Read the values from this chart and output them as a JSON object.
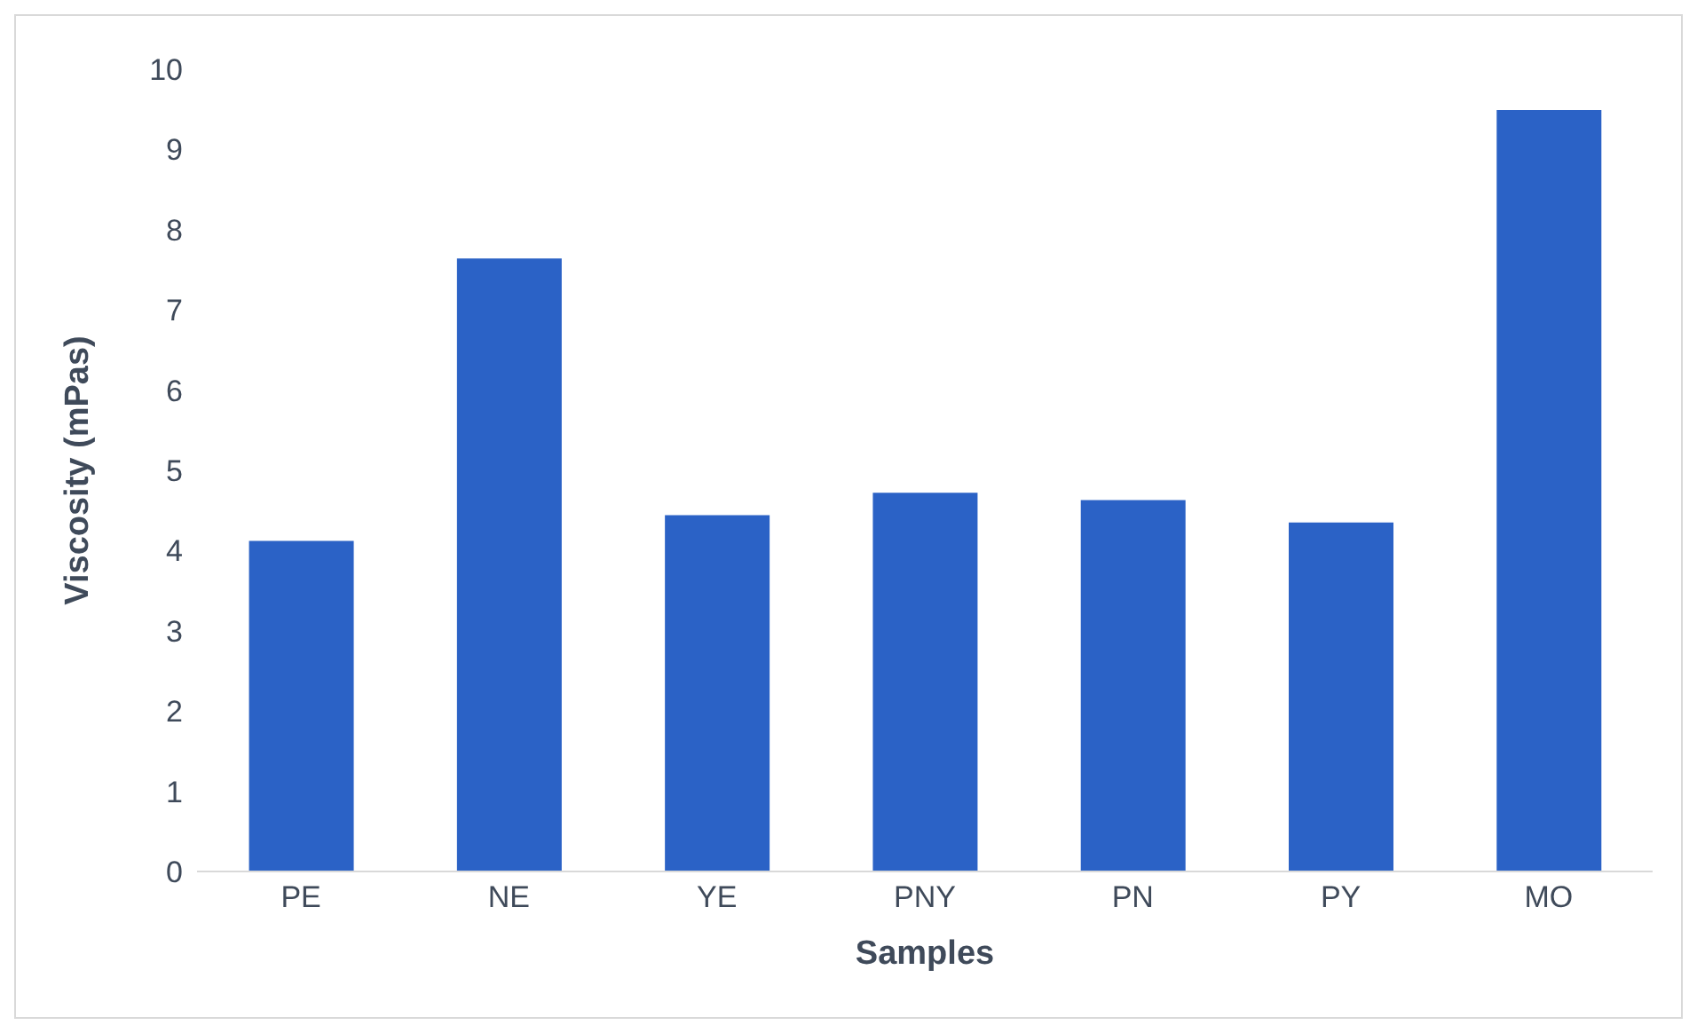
{
  "chart_data": {
    "type": "bar",
    "xlabel": "Samples",
    "ylabel": "Viscosity (mPas)",
    "categories": [
      "PE",
      "NE",
      "YE",
      "PNY",
      "PN",
      "PY",
      "MO"
    ],
    "values": [
      4.12,
      7.64,
      4.44,
      4.72,
      4.63,
      4.35,
      9.49
    ],
    "color": "#2b62c6",
    "ylim": [
      0,
      10
    ],
    "yticks": [
      0,
      1,
      2,
      3,
      4,
      5,
      6,
      7,
      8,
      9,
      10
    ],
    "grid": false,
    "legend": false
  }
}
